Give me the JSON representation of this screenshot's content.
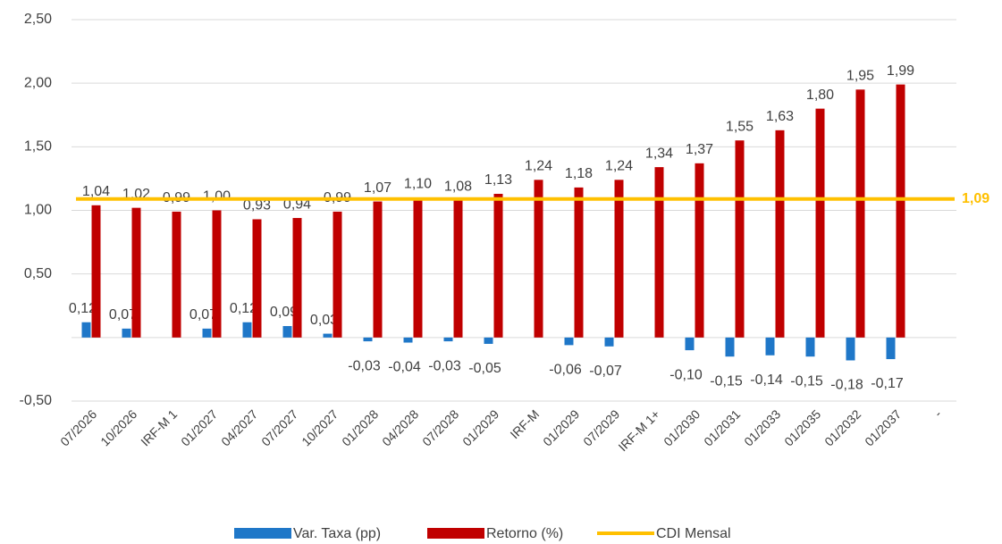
{
  "chart_data": {
    "type": "bar",
    "categories": [
      "07/2026",
      "10/2026",
      "IRF-M 1",
      "01/2027",
      "04/2027",
      "07/2027",
      "10/2027",
      "01/2028",
      "04/2028",
      "07/2028",
      "01/2029",
      "IRF-M",
      "01/2029",
      "07/2029",
      "IRF-M 1+",
      "01/2030",
      "01/2031",
      "01/2033",
      "01/2035",
      "01/2032",
      "01/2037",
      "-"
    ],
    "series": [
      {
        "name": "Var. Taxa (pp)",
        "color": "#1f77c8",
        "values": [
          0.12,
          0.07,
          null,
          0.07,
          0.12,
          0.09,
          0.03,
          -0.03,
          -0.04,
          -0.03,
          -0.05,
          null,
          -0.06,
          -0.07,
          null,
          -0.1,
          -0.15,
          -0.14,
          -0.15,
          -0.18,
          -0.17,
          null
        ],
        "value_labels": [
          "0,12",
          "0,07",
          null,
          "0,07",
          "0,12",
          "0,09",
          "0,03",
          "-0,03",
          "-0,04",
          "-0,03",
          "-0,05",
          null,
          "-0,06",
          "-0,07",
          null,
          "-0,10",
          "-0,15",
          "-0,14",
          "-0,15",
          "-0,18",
          "-0,17",
          null
        ]
      },
      {
        "name": "Retorno (%)",
        "color": "#c00000",
        "values": [
          1.04,
          1.02,
          0.99,
          1.0,
          0.93,
          0.94,
          0.99,
          1.07,
          1.1,
          1.08,
          1.13,
          1.24,
          1.18,
          1.24,
          1.34,
          1.37,
          1.55,
          1.63,
          1.8,
          1.95,
          1.99,
          null
        ],
        "value_labels": [
          "1,04",
          "1,02",
          "0,99",
          "1,00",
          "0,93",
          "0,94",
          "0,99",
          "1,07",
          "1,10",
          "1,08",
          "1,13",
          "1,24",
          "1,18",
          "1,24",
          "1,34",
          "1,37",
          "1,55",
          "1,63",
          "1,80",
          "1,95",
          "1,99",
          null
        ]
      }
    ],
    "reference_line": {
      "name": "CDI Mensal",
      "color": "#ffc000",
      "value": 1.09,
      "label": "1,09"
    },
    "ylim": [
      -0.5,
      2.5
    ],
    "yticks": [
      {
        "value": -0.5,
        "label": "-0,50"
      },
      {
        "value": 0.5,
        "label": "0,50"
      },
      {
        "value": 1.0,
        "label": "1,00"
      },
      {
        "value": 1.5,
        "label": "1,50"
      },
      {
        "value": 2.0,
        "label": "2,00"
      },
      {
        "value": 2.5,
        "label": "2,50"
      }
    ],
    "grid": true,
    "legend": "bottom"
  }
}
